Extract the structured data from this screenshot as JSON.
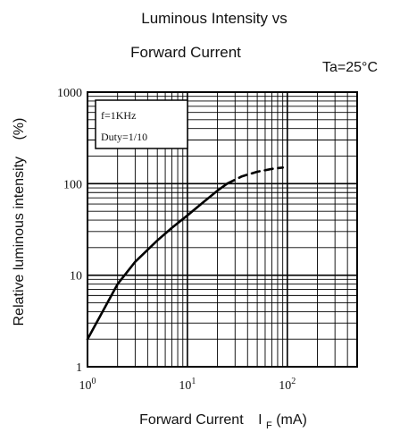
{
  "chart_data": {
    "type": "line",
    "title_line1": "Luminous Intensity vs",
    "title_line2": "Forward Current",
    "condition": "Ta=25°C",
    "xlabel": "Forward Current",
    "xlabel_symbol": "I",
    "xlabel_sub": "F",
    "xlabel_unit": "(mA)",
    "ylabel": "Relative luminous intensity",
    "ylabel_unit": "(%)",
    "x_scale": "log",
    "y_scale": "log",
    "xlim": [
      1,
      500
    ],
    "ylim": [
      1,
      1000
    ],
    "x_ticks": [
      {
        "value": 1,
        "base": "10",
        "exp": "0"
      },
      {
        "value": 10,
        "base": "10",
        "exp": "1"
      },
      {
        "value": 100,
        "base": "10",
        "exp": "2"
      }
    ],
    "y_ticks": [
      {
        "value": 1,
        "label": "1"
      },
      {
        "value": 10,
        "label": "10"
      },
      {
        "value": 100,
        "label": "100"
      },
      {
        "value": 1000,
        "label": "1000"
      }
    ],
    "grid": true,
    "note_lines": [
      "f=1KHz",
      "Duty=1/10"
    ],
    "series": [
      {
        "line_style": "solid",
        "x": [
          1,
          1.5,
          2,
          3,
          5,
          7,
          10,
          15,
          20,
          25
        ],
        "y": [
          2,
          4.5,
          8,
          14,
          24,
          33,
          45,
          65,
          84,
          100
        ]
      },
      {
        "line_style": "dashed",
        "x": [
          25,
          35,
          50,
          70,
          90
        ],
        "y": [
          100,
          120,
          135,
          145,
          150
        ]
      }
    ]
  }
}
